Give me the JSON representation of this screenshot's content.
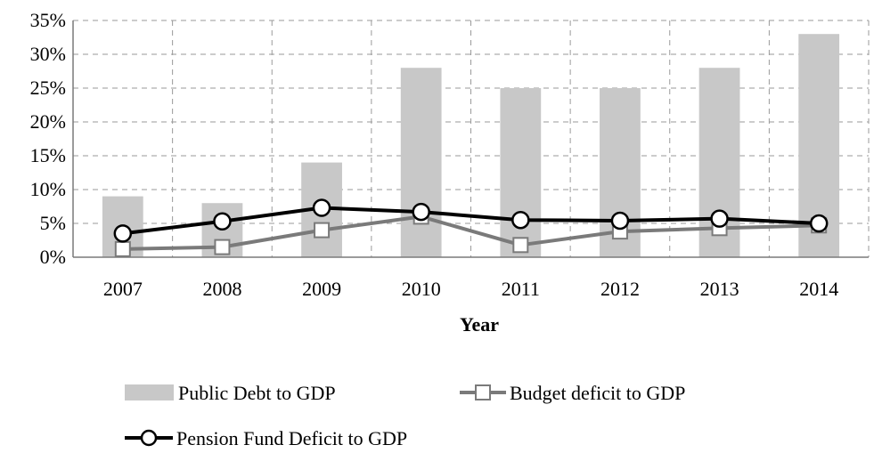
{
  "chart_data": {
    "type": "bar",
    "xlabel": "Year",
    "ylabel": "",
    "categories": [
      "2007",
      "2008",
      "2009",
      "2010",
      "2011",
      "2012",
      "2013",
      "2014"
    ],
    "ylim": [
      0,
      35
    ],
    "yticks": [
      0,
      5,
      10,
      15,
      20,
      25,
      30,
      35
    ],
    "ytick_labels": [
      "0%",
      "5%",
      "10%",
      "15%",
      "20%",
      "25%",
      "30%",
      "35%"
    ],
    "grid": true,
    "legend_position": "bottom",
    "series": [
      {
        "name": "Public Debt to GDP",
        "kind": "bar",
        "color": "#c8c8c8",
        "values": [
          9,
          8,
          14,
          28,
          25,
          25,
          28,
          33
        ]
      },
      {
        "name": "Budget deficit to GDP",
        "kind": "line",
        "marker": "square",
        "color": "#7a7a7a",
        "values": [
          1.2,
          1.5,
          4.0,
          6.0,
          1.8,
          3.8,
          4.3,
          4.7
        ]
      },
      {
        "name": "Pension Fund Deficit to GDP",
        "kind": "line",
        "marker": "circle",
        "color": "#000000",
        "values": [
          3.5,
          5.3,
          7.3,
          6.7,
          5.5,
          5.4,
          5.7,
          5.0
        ]
      }
    ]
  }
}
